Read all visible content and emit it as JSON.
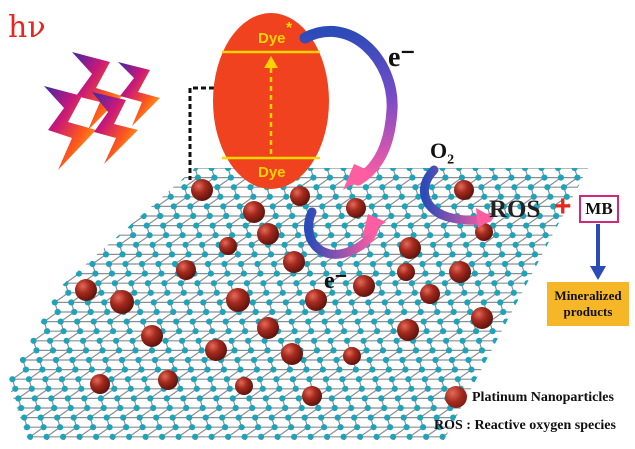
{
  "light": {
    "label": "hν",
    "color": "#e8261f"
  },
  "dye": {
    "excited_label": "Dye",
    "excited_mark": "*",
    "ground_label": "Dye",
    "fill": "#f0421f",
    "line_color": "#ffd400"
  },
  "electrons": {
    "excited_label": "e⁻",
    "returning_label": "e⁻"
  },
  "oxygen": {
    "label_main": "O",
    "label_sub": "2"
  },
  "reaction": {
    "ros_label": "ROS",
    "plus": "+",
    "mb_label": "MB"
  },
  "products": {
    "line1": "Mineralized",
    "line2": "products",
    "fill": "#f5b728"
  },
  "legend": {
    "particles_label": "Platinum Nanoparticles",
    "ros_definition": "ROS : Reactive oxygen species"
  },
  "colors": {
    "graphene_atom": "#1fa3b8",
    "graphene_bond": "#8a8f94",
    "nanoparticle": "#a52a1e",
    "arrow_blue": "#2b4bb8",
    "arrow_pink": "#ff5da2"
  },
  "icons": [
    "lightning-bolt-icon",
    "nanoparticle-icon"
  ]
}
